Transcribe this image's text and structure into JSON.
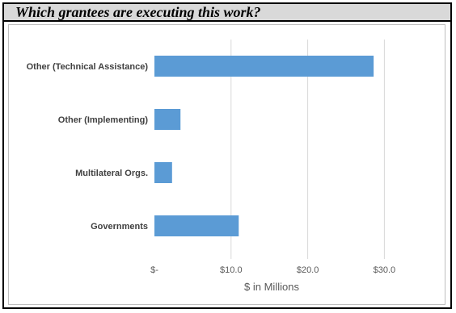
{
  "header": {
    "title": "Which grantees are executing this work?"
  },
  "colors": {
    "bar": "#5b9bd5",
    "gridline": "#d9d9d9",
    "category_label": "#404040",
    "tick_label": "#595959"
  },
  "chart_data": {
    "type": "bar",
    "orientation": "horizontal",
    "title": "",
    "xlabel": "$ in Millions",
    "ylabel": "",
    "categories": [
      "Other (Technical Assistance)",
      "Other (Implementing)",
      "Multilateral Orgs.",
      "Governments"
    ],
    "values": [
      28.6,
      3.4,
      2.3,
      11.0
    ],
    "xlim": [
      0,
      30
    ],
    "xticks": [
      0,
      10,
      20,
      30
    ],
    "xtick_labels": [
      "$-",
      "$10.0",
      "$20.0",
      "$30.0"
    ],
    "grid": true,
    "legend": "none"
  }
}
